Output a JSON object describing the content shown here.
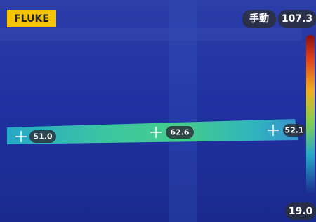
{
  "logo": "FLUKE",
  "mode": "手動",
  "scale": {
    "max": "107.3",
    "min": "19.0"
  },
  "spots": [
    {
      "label": "51.0"
    },
    {
      "label": "62.6"
    },
    {
      "label": "52.1"
    }
  ]
}
